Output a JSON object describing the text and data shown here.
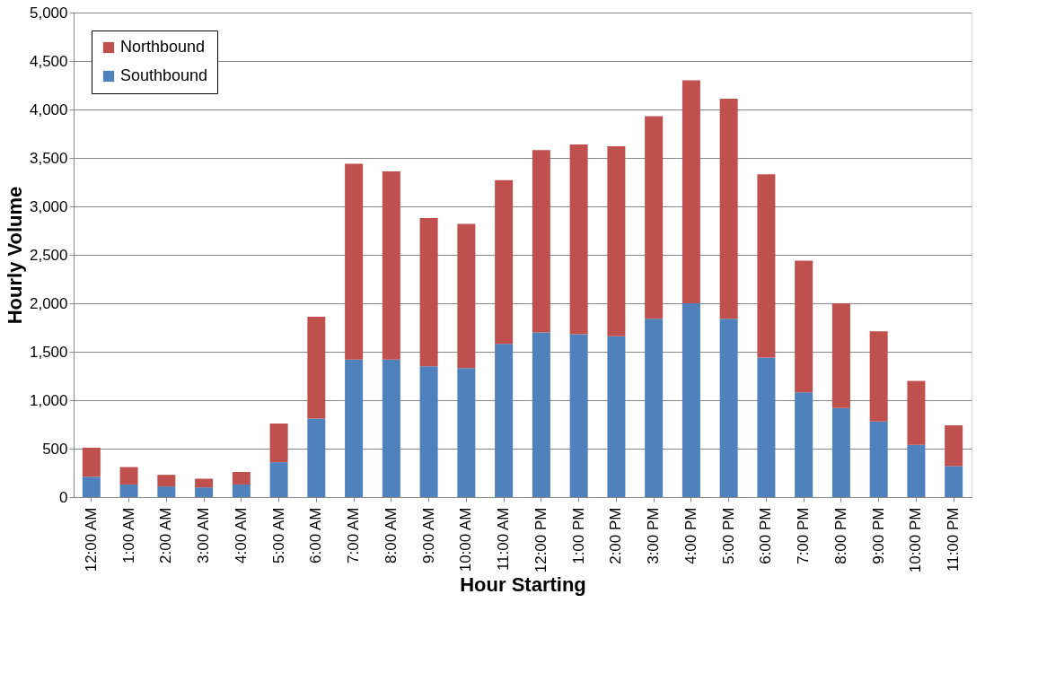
{
  "chart_data": {
    "type": "bar",
    "stacked": true,
    "xlabel": "Hour Starting",
    "ylabel": "Hourly Volume",
    "categories": [
      "12:00 AM",
      "1:00 AM",
      "2:00 AM",
      "3:00 AM",
      "4:00 AM",
      "5:00 AM",
      "6:00 AM",
      "7:00 AM",
      "8:00 AM",
      "9:00 AM",
      "10:00 AM",
      "11:00 AM",
      "12:00 PM",
      "1:00 PM",
      "2:00 PM",
      "3:00 PM",
      "4:00 PM",
      "5:00 PM",
      "6:00 PM",
      "7:00 PM",
      "8:00 PM",
      "9:00 PM",
      "10:00 PM",
      "11:00 PM"
    ],
    "series": [
      {
        "name": "Southbound",
        "color": "#4f81bd",
        "values": [
          210,
          130,
          110,
          100,
          130,
          360,
          810,
          1420,
          1420,
          1350,
          1330,
          1580,
          1700,
          1680,
          1660,
          1840,
          2000,
          1840,
          1440,
          1080,
          920,
          780,
          540,
          320
        ]
      },
      {
        "name": "Northbound",
        "color": "#c0504d",
        "values": [
          300,
          180,
          120,
          90,
          130,
          400,
          1050,
          2020,
          1940,
          1530,
          1490,
          1690,
          1880,
          1960,
          1960,
          2090,
          2300,
          2270,
          1890,
          1360,
          1080,
          930,
          660,
          420
        ]
      }
    ],
    "ylim": [
      0,
      5000
    ],
    "yticks": [
      0,
      {
        "value": 500,
        "label": "500"
      },
      {
        "value": 1000,
        "label": "1,000"
      },
      {
        "value": 1500,
        "label": "1,500"
      },
      {
        "value": 2000,
        "label": "2,000"
      },
      {
        "value": 2500,
        "label": "2,500"
      },
      {
        "value": 3000,
        "label": "3,000"
      },
      {
        "value": 3500,
        "label": "3,500"
      },
      {
        "value": 4000,
        "label": "4,000"
      },
      {
        "value": 4500,
        "label": "4,500"
      },
      {
        "value": 5000,
        "label": "5,000"
      }
    ],
    "grid": "y",
    "legend": "top left"
  }
}
